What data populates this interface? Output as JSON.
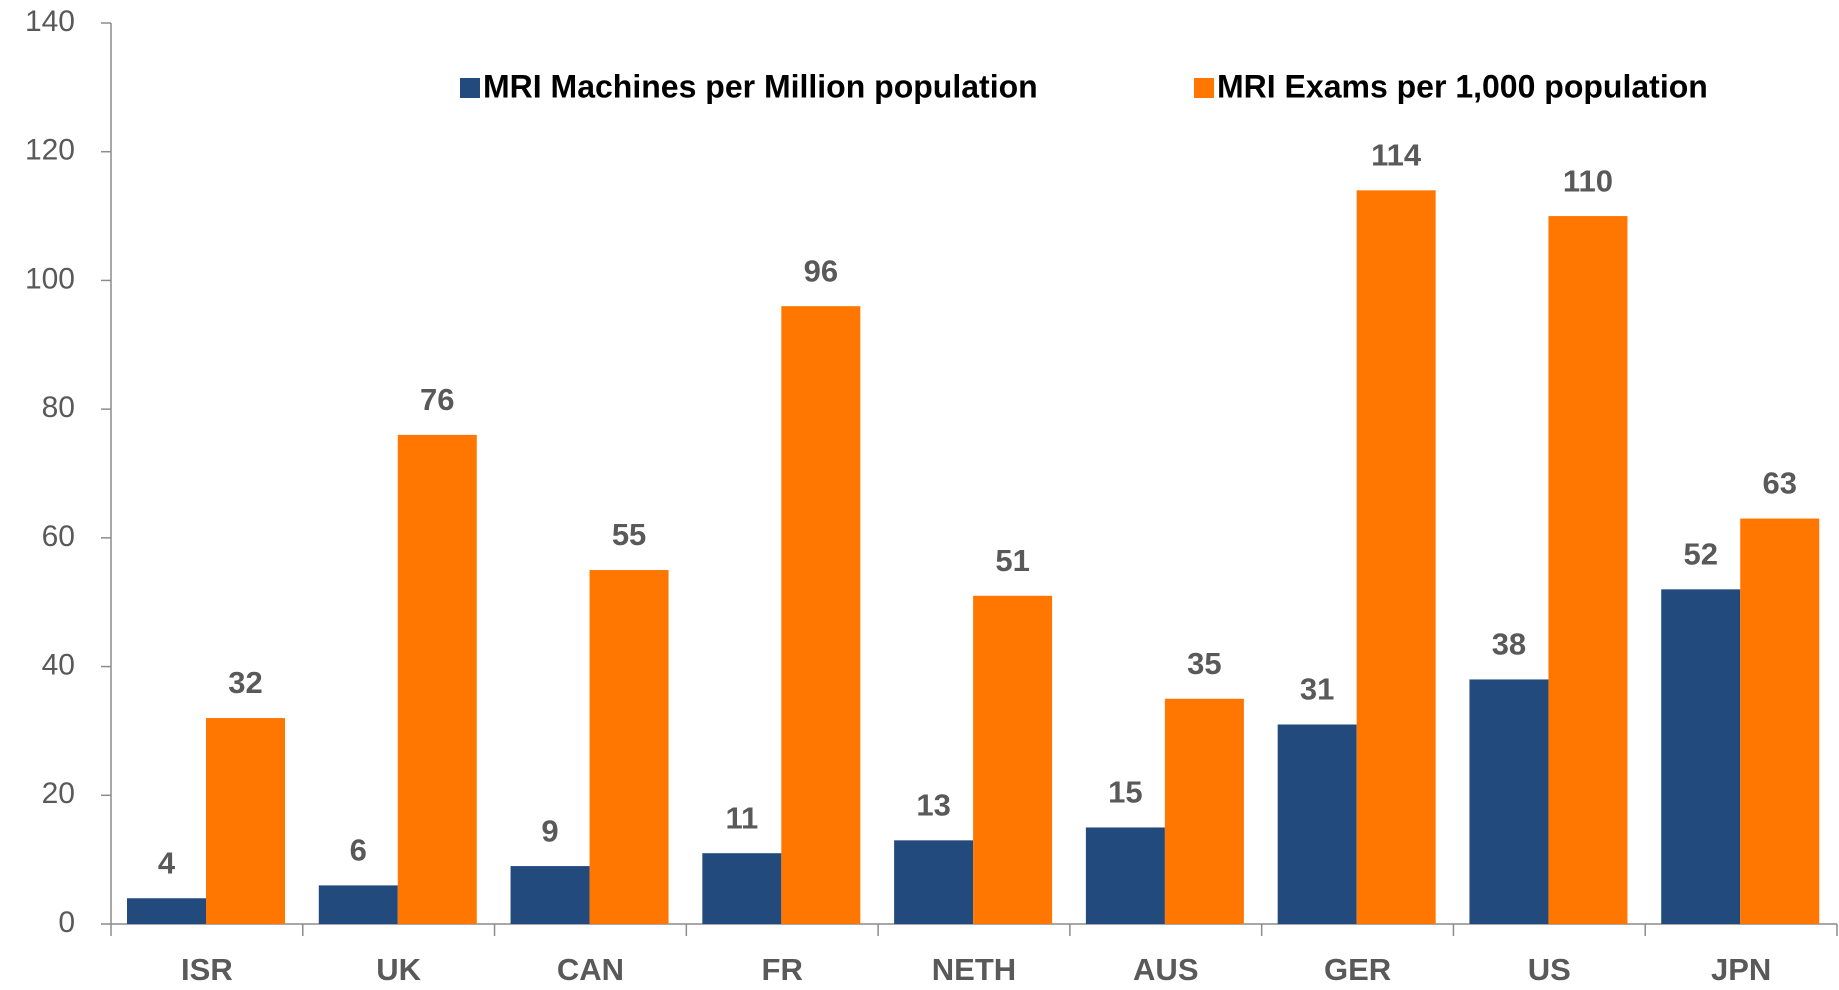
{
  "chart_data": {
    "type": "bar",
    "categories": [
      "ISR",
      "UK",
      "CAN",
      "FR",
      "NETH",
      "AUS",
      "GER",
      "US",
      "JPN"
    ],
    "series": [
      {
        "name": "MRI Machines per Million population",
        "color": "#224a7c",
        "values": [
          4,
          6,
          9,
          11,
          13,
          15,
          31,
          38,
          52
        ]
      },
      {
        "name": "MRI Exams per 1,000 population",
        "color": "#ff7600",
        "values": [
          32,
          76,
          55,
          96,
          51,
          35,
          114,
          110,
          63
        ]
      }
    ],
    "ylim": [
      0,
      140
    ],
    "yticks": [
      0,
      20,
      40,
      60,
      80,
      100,
      120,
      140
    ],
    "grid": false,
    "legend": "top"
  }
}
